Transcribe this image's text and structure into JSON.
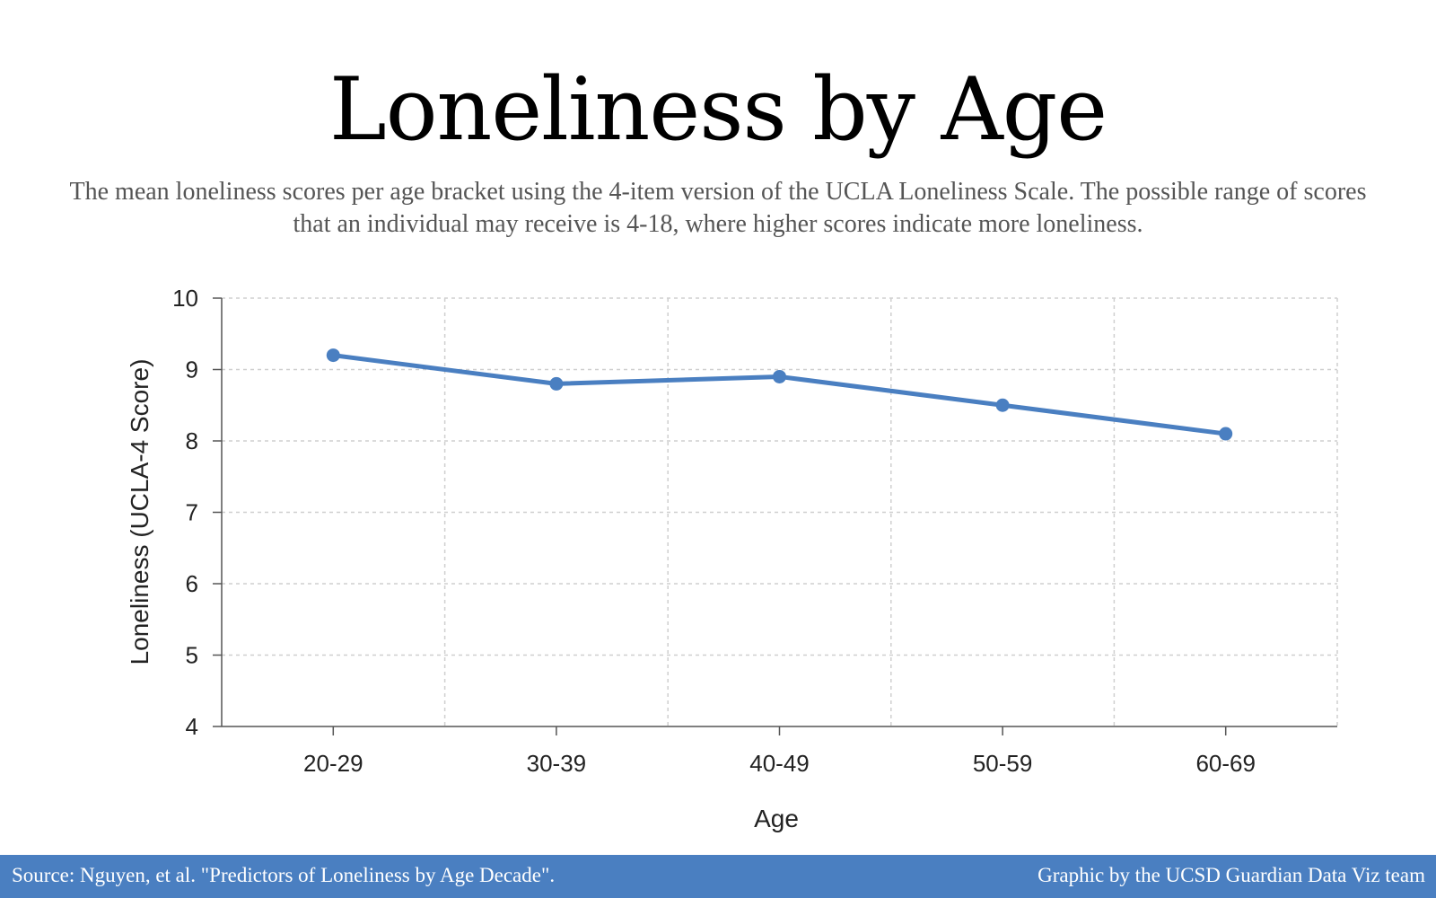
{
  "chart_data": {
    "type": "line",
    "title": "Loneliness by Age",
    "subtitle": "The mean loneliness scores per age bracket using the 4-item version of the UCLA Loneliness Scale. The possible range of scores that an individual may receive is 4-18, where higher scores indicate more loneliness.",
    "xlabel": "Age",
    "ylabel": "Loneliness (UCLA-4 Score)",
    "categories": [
      "20-29",
      "30-39",
      "40-49",
      "50-59",
      "60-69"
    ],
    "values": [
      9.2,
      8.8,
      8.9,
      8.5,
      8.1
    ],
    "ylim": [
      4,
      10
    ],
    "yticks": [
      4,
      5,
      6,
      7,
      8,
      9,
      10
    ],
    "grid": true,
    "color": "#4a7fc1"
  },
  "footer": {
    "source": "Source: Nguyen, et al. \"Predictors of Loneliness by Age Decade\".",
    "credit": "Graphic by the UCSD Guardian Data Viz team"
  }
}
